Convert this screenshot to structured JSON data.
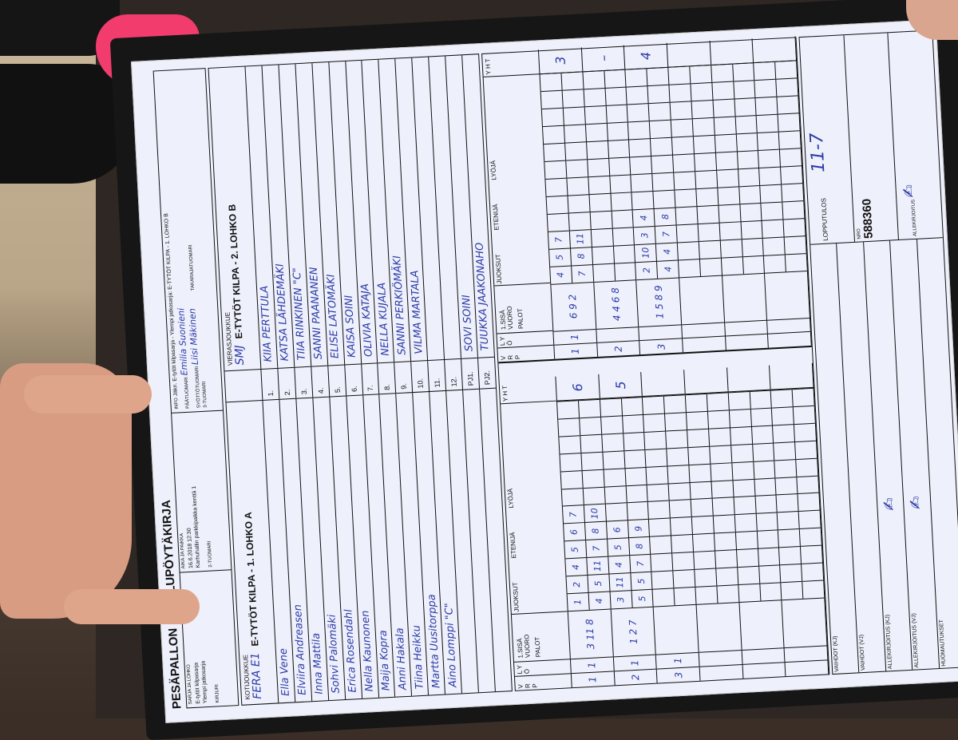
{
  "header": {
    "title": "PESÄPALLON OTTELUPÖYTÄKIRJA",
    "sarja_label": "SARJA JA LOHKO",
    "sarja_value1": "E-tytöt kilpasarja",
    "sarja_value2": "Ylempi jatkosarja",
    "kirjuri_label": "KIRJURI",
    "aika_label": "AIKA JA PAIKKA",
    "aika_value1": "16.6.2018 12:30",
    "aika_value2": "Karhuhallin parkkipaikka kenttä 1",
    "tuomari2_label": "2-TUOMARI",
    "info_label": "INFO",
    "info_value": "Jäkn. E-tytöt kilpasarja - Ylempi jatkosarja: E-TYTÖT KILPA - 1. LOHKO B",
    "paatuomari_label": "PÄÄTUOMARI",
    "paatuomari_value": "Emilia Suonieni",
    "syotto_label": "SYÖTTÖTUOMARI",
    "syotto_value": "Liisi Mäkinen",
    "takaraja_label": "TAKARAJATUOMARI",
    "tuomari3_label": "3-TUOMARI"
  },
  "home": {
    "label": "KOTIJOUKKUE",
    "division": "E-TYTÖT KILPA - 1. LOHKO A",
    "team": "FERA E1",
    "players": [
      "Ella Vene",
      "Elviira Andreasen",
      "Inna Mattila",
      "Sohvi Palomäki",
      "Erica Rosendahl",
      "Nella Kaunonen",
      "Maija Kopra",
      "Anni Hakala",
      "Tiina Heikku",
      "Martta Uusitorppa",
      "Aino Lomppi \"C\"",
      "",
      "",
      ""
    ]
  },
  "numbers": [
    "1.",
    "2.",
    "3.",
    "4.",
    "5.",
    "6.",
    "7.",
    "8.",
    "9.",
    "10.",
    "11.",
    "12.",
    "PJ1.",
    "PJ2."
  ],
  "away": {
    "label": "VIERASJOUKKUE",
    "division": "E-TYTÖT KILPA - 2. LOHKO B",
    "team": "SMJ",
    "players": [
      "KIIA PERTTULA",
      "KATSA LÄHDEMÄKI",
      "TIIA RINKINEN \"C\"",
      "SANNI PAANANEN",
      "ELISE LATOMÄKI",
      "KAISA SOINI",
      "OLIVIA KATAJA",
      "NELLA KUJALA",
      "SANNI PERKIÖMÄKI",
      "VILMA MARTALA",
      "",
      "",
      "SOVI SOINI",
      "TUUKKA JAAKONAHO"
    ]
  },
  "score_labels": {
    "vrp": "V R P",
    "lyo": "L Y Ö",
    "sisavuoro": "1.SISÄ VUORO",
    "palot": "PALOT",
    "juoksut": "JUOKSUT",
    "etenija": "ETENIJÄ",
    "lyoja": "LYÖJÄ",
    "yht": "Y H T"
  },
  "score": {
    "home": [
      {
        "vrp": "1",
        "lyo": "1",
        "palot": "3 11 8",
        "runs_top": [
          "1",
          "2",
          "4",
          "5",
          "6",
          "7"
        ],
        "runs_bottom": [
          "4",
          "5",
          "11",
          "7",
          "8",
          "10"
        ],
        "yht": "6"
      },
      {
        "vrp": "2",
        "lyo": "1",
        "palot": "1 2 7",
        "runs_top": [
          "3",
          "11",
          "4",
          "5",
          "6"
        ],
        "runs_bottom": [
          "5",
          "5",
          "7",
          "8",
          "9"
        ],
        "yht": "5"
      },
      {
        "vrp": "3",
        "lyo": "1",
        "palot": "",
        "runs_top": [],
        "runs_bottom": [],
        "yht": ""
      },
      {
        "vrp": "",
        "lyo": "",
        "palot": "",
        "runs_top": [],
        "runs_bottom": [],
        "yht": ""
      },
      {
        "vrp": "",
        "lyo": "",
        "palot": "",
        "runs_top": [],
        "runs_bottom": [],
        "yht": ""
      },
      {
        "vrp": "",
        "lyo": "",
        "palot": "",
        "runs_top": [],
        "runs_bottom": [],
        "yht": ""
      }
    ],
    "away": [
      {
        "vrp": "1",
        "lyo": "1",
        "palot": "6 9 2",
        "runs_top": [
          "4",
          "5",
          "7"
        ],
        "runs_bottom": [
          "7",
          "8",
          "11"
        ],
        "yht": "3"
      },
      {
        "vrp": "2",
        "lyo": "",
        "palot": "4 4 6 8",
        "runs_top": [],
        "runs_bottom": [],
        "yht": "–"
      },
      {
        "vrp": "3",
        "lyo": "",
        "palot": "1 5 8 9",
        "runs_top": [
          "2",
          "10",
          "3",
          "4"
        ],
        "runs_bottom": [
          "4",
          "4",
          "7",
          "8"
        ],
        "yht": "4"
      },
      {
        "vrp": "",
        "lyo": "",
        "palot": "",
        "runs_top": [],
        "runs_bottom": [],
        "yht": ""
      },
      {
        "vrp": "",
        "lyo": "",
        "palot": "",
        "runs_top": [],
        "runs_bottom": [],
        "yht": ""
      },
      {
        "vrp": "",
        "lyo": "",
        "palot": "",
        "runs_top": [],
        "runs_bottom": [],
        "yht": ""
      }
    ]
  },
  "bottom": {
    "vaihdot_kj": "VAIHDOT (KJ)",
    "vaihdot_vj": "VAIHDOT (VJ)",
    "allekirjoitus_kj": "ALLEKIRJOITUS (KJ)",
    "allekirjoitus_vj": "ALLEKIRJOITUS (VJ)",
    "huomautukset": "HUOMAUTUKSET",
    "lopputulos_label": "LOPPUTULOS",
    "lopputulos_value": "11-7",
    "nro_label": "NRO",
    "nro_value": "588360",
    "allekirjoitus": "ALLEKIRJOITUS"
  }
}
